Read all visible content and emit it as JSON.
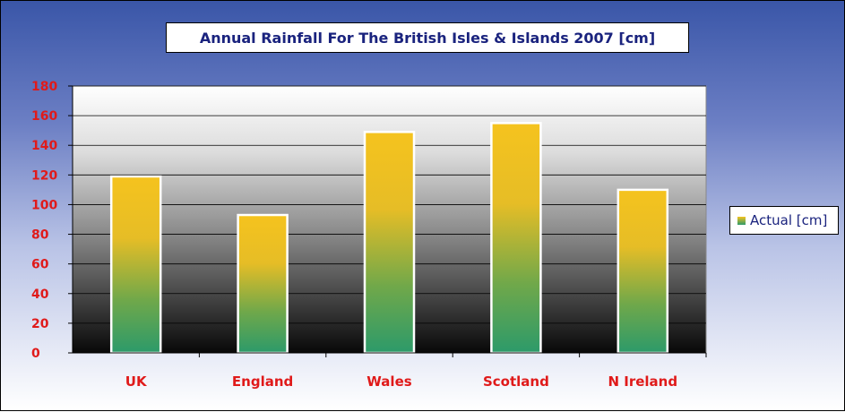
{
  "chart_data": {
    "type": "bar",
    "title": "Annual Rainfall For The British Isles & Islands 2007 [cm]",
    "categories": [
      "UK",
      "England",
      "Wales",
      "Scotland",
      "N Ireland"
    ],
    "series": [
      {
        "name": "Actual [cm]",
        "values": [
          119,
          93,
          149,
          155,
          110
        ]
      }
    ],
    "ylim": [
      0,
      180
    ],
    "yticks": [
      0,
      20,
      40,
      60,
      80,
      100,
      120,
      140,
      160,
      180
    ],
    "grid": true,
    "legend_position": "right",
    "colors": {
      "bar_top": "#f5c31e",
      "bar_bottom": "#2c9a6a",
      "tick_text": "#e01a1a",
      "title_text": "#1a237e"
    }
  }
}
